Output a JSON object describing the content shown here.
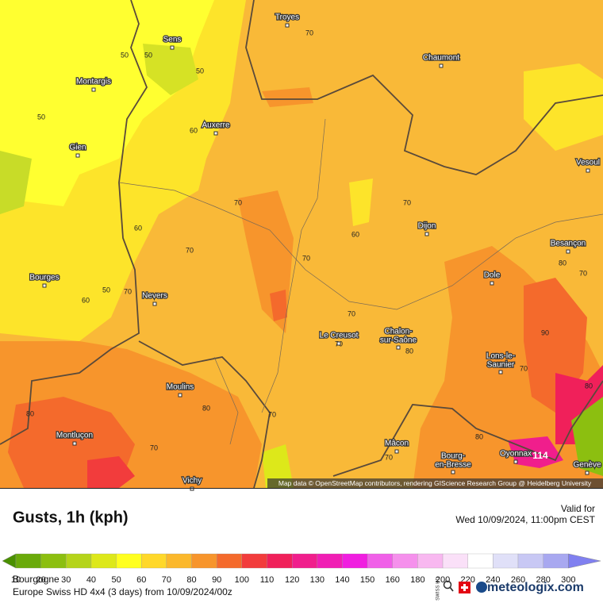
{
  "header": {
    "title": "Gusts, 1h (kph)",
    "valid_label": "Valid for",
    "valid_time": "Wed 10/09/2024, 11:00pm CEST"
  },
  "map": {
    "cities": [
      "Troyes",
      "Sens",
      "Chaumont",
      "Montargis",
      "Auxerre",
      "Gien",
      "Vesoul",
      "Dijon",
      "Besançon",
      "Bourges",
      "Nevers",
      "Dole",
      "Le Creusot",
      [
        "Chalon-",
        "sur-Saône"
      ],
      [
        "Lons-le-",
        "Saunier"
      ],
      "Moulins",
      "Montluçon",
      "Mâcon",
      [
        "Bourg-",
        "en-Bresse"
      ],
      "Oyonnax",
      "Genève",
      "Vichy"
    ],
    "contour_labels": [
      "50",
      "50",
      "50",
      "70",
      "50",
      "60",
      "70",
      "70",
      "60",
      "60",
      "70",
      "70",
      "80",
      "70",
      "50",
      "70",
      "60",
      "70",
      "90",
      "70",
      "80",
      "70",
      "80",
      "80",
      "70",
      "70",
      "80",
      "70",
      "114",
      "80"
    ],
    "attribution": "Map data © OpenStreetMap contributors, rendering GIScience Research Group @ Heidelberg University"
  },
  "legend": {
    "values": [
      10,
      20,
      30,
      40,
      50,
      60,
      70,
      80,
      90,
      100,
      110,
      120,
      130,
      140,
      150,
      160,
      180,
      200,
      220,
      240,
      260,
      280,
      300
    ],
    "colors": [
      "#4a9000",
      "#6aaa0a",
      "#8cbf10",
      "#b5d41a",
      "#dde81a",
      "#ffff20",
      "#ffd82a",
      "#fbb82c",
      "#f7952c",
      "#f46a2c",
      "#f23c3c",
      "#f0205a",
      "#f01e8c",
      "#f01eb4",
      "#f01ee0",
      "#f060e8",
      "#f590ec",
      "#f8b8f0",
      "#fae0f8",
      "#ffffff",
      "#e0e0f8",
      "#c8c8f4",
      "#a8a8f0",
      "#8080f0"
    ]
  },
  "footer": {
    "region": "Bourgogne",
    "model": "Europe Swiss HD 4x4 (3 days) from 10/09/2024/00z",
    "swiss_hd": "SWISS HD",
    "brand": "meteologix.com"
  }
}
